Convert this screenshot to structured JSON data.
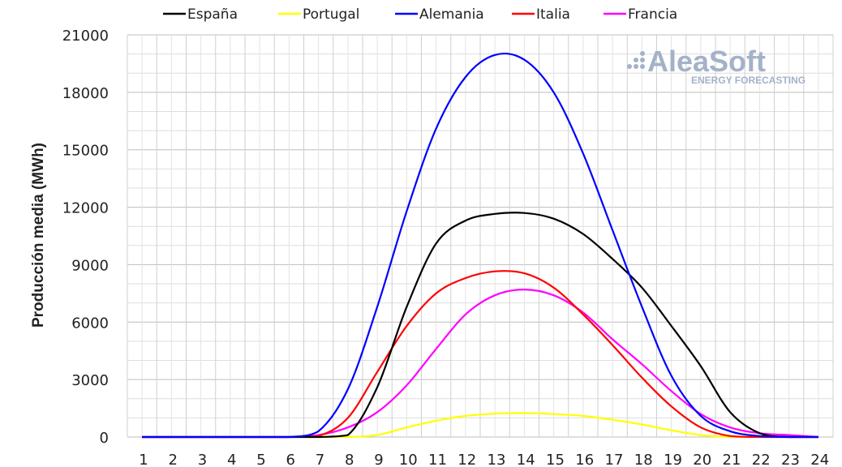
{
  "chart_data": {
    "type": "line",
    "title": "",
    "xlabel": "",
    "ylabel": "Producción media (MWh)",
    "x": [
      1,
      2,
      3,
      4,
      5,
      6,
      7,
      8,
      9,
      10,
      11,
      12,
      13,
      14,
      15,
      16,
      17,
      18,
      19,
      20,
      21,
      22,
      23,
      24
    ],
    "ylim": [
      0,
      21000
    ],
    "yticks": [
      0,
      3000,
      6000,
      9000,
      12000,
      15000,
      18000,
      21000
    ],
    "grid": true,
    "legend_position": "top",
    "series": [
      {
        "name": "España",
        "color": "#000000",
        "values": [
          0,
          0,
          0,
          0,
          0,
          0,
          0,
          100,
          2600,
          6800,
          10100,
          11300,
          11650,
          11700,
          11400,
          10600,
          9300,
          7800,
          5800,
          3700,
          1300,
          200,
          0,
          0
        ]
      },
      {
        "name": "Portugal",
        "color": "#ffff00",
        "values": [
          0,
          0,
          0,
          0,
          0,
          0,
          0,
          0,
          100,
          500,
          850,
          1100,
          1220,
          1250,
          1200,
          1100,
          900,
          650,
          350,
          100,
          0,
          0,
          0,
          0
        ]
      },
      {
        "name": "Alemania",
        "color": "#0000ff",
        "values": [
          0,
          0,
          0,
          0,
          0,
          0,
          300,
          2500,
          6800,
          11800,
          16100,
          18800,
          19950,
          19700,
          18000,
          14800,
          10800,
          6800,
          3200,
          1100,
          300,
          50,
          0,
          0
        ]
      },
      {
        "name": "Italia",
        "color": "#ff0000",
        "values": [
          0,
          0,
          0,
          0,
          0,
          0,
          50,
          1000,
          3400,
          5800,
          7500,
          8300,
          8650,
          8550,
          7800,
          6400,
          4800,
          3100,
          1600,
          500,
          50,
          0,
          0,
          0
        ]
      },
      {
        "name": "Francia",
        "color": "#ff00ff",
        "values": [
          0,
          0,
          0,
          0,
          0,
          0,
          100,
          500,
          1300,
          2700,
          4600,
          6400,
          7400,
          7700,
          7400,
          6500,
          5100,
          3800,
          2400,
          1200,
          500,
          200,
          100,
          0
        ]
      }
    ]
  },
  "logo": {
    "name": "AleaSoft",
    "tagline": "ENERGY FORECASTING"
  }
}
